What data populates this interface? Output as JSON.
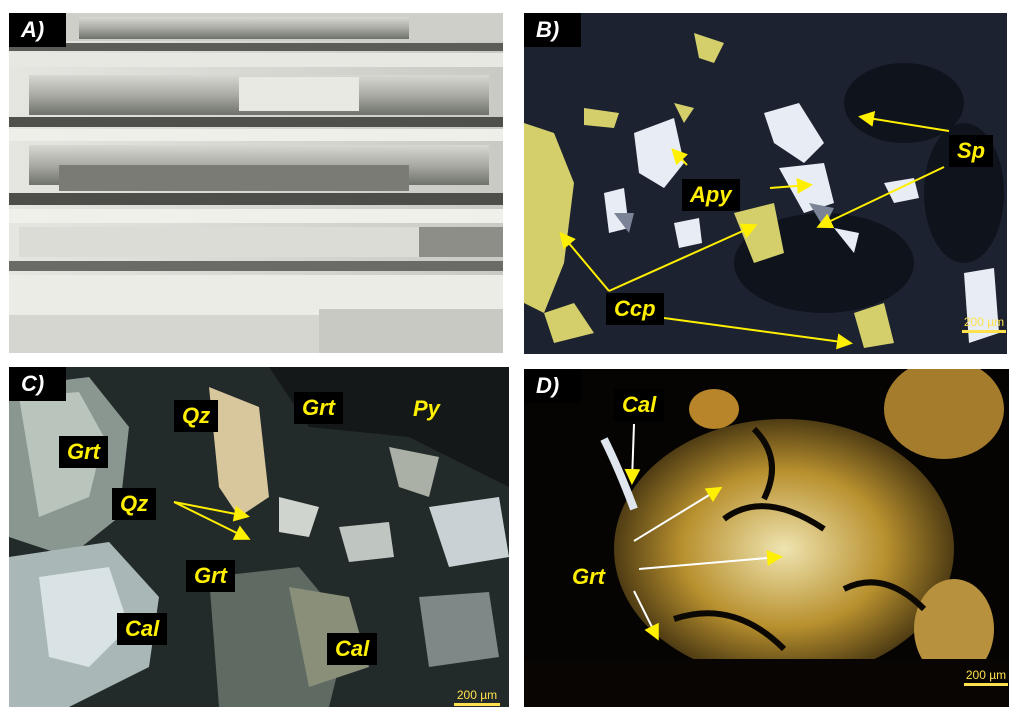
{
  "panels": {
    "a": {
      "label": "A)"
    },
    "b": {
      "label": "B)",
      "tags": {
        "sp": "Sp",
        "apy": "Apy",
        "ccp": "Ccp"
      },
      "scale": "200 µm"
    },
    "c": {
      "label": "C)",
      "tags": {
        "qz1": "Qz",
        "grt1": "Grt",
        "py": "Py",
        "grt2": "Grt",
        "qz2": "Qz",
        "grt3": "Grt",
        "cal1": "Cal",
        "cal2": "Cal"
      },
      "scale": "200 µm"
    },
    "d": {
      "label": "D)",
      "tags": {
        "cal": "Cal",
        "grt": "Grt"
      },
      "scale": "200 µm"
    }
  },
  "colors": {
    "label_bg": "#000000",
    "tag_text": "#ffef00",
    "arrow": "#ffef00"
  }
}
